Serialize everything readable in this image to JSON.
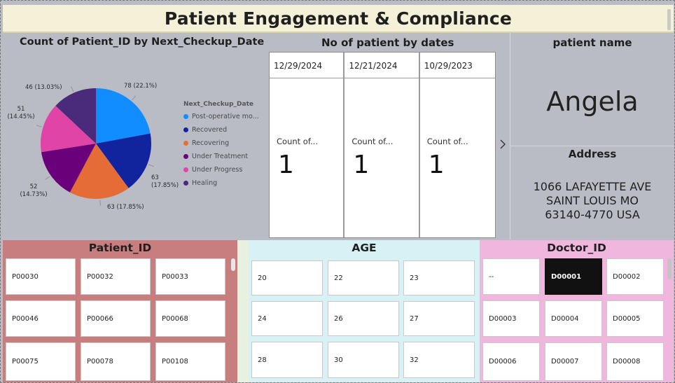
{
  "header": {
    "title": "Patient Engagement & Compliance"
  },
  "pie_chart": {
    "title": "Count of Patient_ID by Next_Checkup_Date",
    "legend_title": "Next_Checkup_Date",
    "legend": [
      {
        "label": "Post-operative mo...",
        "color": "#118dff"
      },
      {
        "label": "Recovered",
        "color": "#12239e"
      },
      {
        "label": "Recovering",
        "color": "#e66c37"
      },
      {
        "label": "Under Treatment",
        "color": "#6b007b"
      },
      {
        "label": "Under Progress",
        "color": "#e044a7"
      },
      {
        "label": "Healing",
        "color": "#4a2a7a"
      }
    ],
    "slice_labels": [
      "78 (22.1%)",
      "63 (17.85%)",
      "63 (17.85%)",
      "52 (14.73%)",
      "51 (14.45%)",
      "46 (13.03%)"
    ]
  },
  "chart_data": {
    "type": "pie",
    "title": "Count of Patient_ID by Next_Checkup_Date",
    "categories": [
      "Post-operative mo...",
      "Recovered",
      "Recovering",
      "Under Treatment",
      "Under Progress",
      "Healing"
    ],
    "values": [
      78,
      63,
      63,
      52,
      51,
      46
    ],
    "percentages": [
      22.1,
      17.85,
      17.85,
      14.73,
      14.45,
      13.03
    ],
    "colors": [
      "#118dff",
      "#12239e",
      "#e66c37",
      "#6b007b",
      "#e044a7",
      "#4a2a7a"
    ],
    "legend_position": "right",
    "legend_title": "Next_Checkup_Date"
  },
  "dates_visual": {
    "title": "No of patient by dates",
    "cards": [
      {
        "date": "12/29/2024",
        "label": "Count of...",
        "value": "1"
      },
      {
        "date": "12/21/2024",
        "label": "Count of...",
        "value": "1"
      },
      {
        "date": "10/29/2023",
        "label": "Count of...",
        "value": "1"
      }
    ],
    "next_icon": "chevron-right-icon"
  },
  "info": {
    "name_heading": "patient name",
    "name_value": "Angela",
    "address_heading": "Address",
    "address_lines": [
      "1066 LAFAYETTE AVE",
      "SAINT LOUIS MO",
      "63140-4770 USA"
    ]
  },
  "slicers": {
    "patient": {
      "title": "Patient_ID",
      "items": [
        "P00030",
        "P00032",
        "P00033",
        "P00046",
        "P00066",
        "P00068",
        "P00075",
        "P00078",
        "P00108"
      ]
    },
    "age": {
      "title": "AGE",
      "items": [
        "20",
        "22",
        "23",
        "24",
        "26",
        "27",
        "28",
        "30",
        "32"
      ]
    },
    "doctor": {
      "title": "Doctor_ID",
      "items": [
        "--",
        "D00001",
        "D00002",
        "D00003",
        "D00004",
        "D00005",
        "D00006",
        "D00007",
        "D00008"
      ],
      "selected": "D00001"
    }
  }
}
